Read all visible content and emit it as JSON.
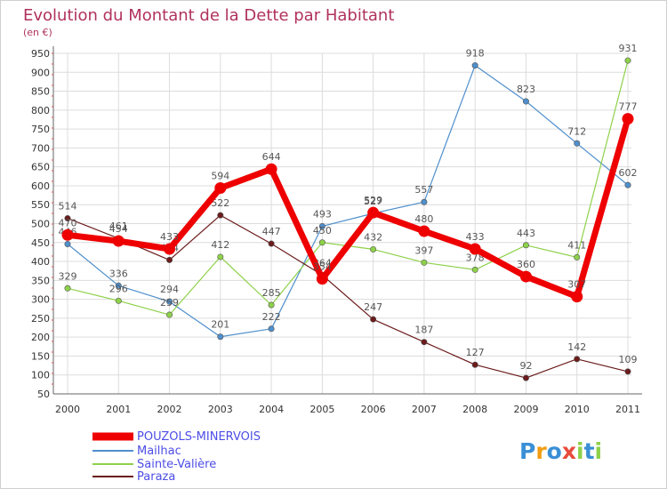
{
  "chart_data": {
    "type": "line",
    "title": "Evolution du Montant de la Dette par Habitant",
    "subtitle": "(en €)",
    "x": [
      "2000",
      "2001",
      "2002",
      "2003",
      "2004",
      "2005",
      "2006",
      "2007",
      "2008",
      "2009",
      "2010",
      "2011"
    ],
    "yticks": [
      50,
      100,
      150,
      200,
      250,
      300,
      350,
      400,
      450,
      500,
      550,
      600,
      650,
      700,
      750,
      800,
      850,
      900,
      950
    ],
    "ylim": [
      50,
      950
    ],
    "grid": true,
    "legend_position": "bottom-left",
    "series": [
      {
        "name": "POUZOLS-MINERVOIS",
        "color": "#ee0000",
        "emphasis": true,
        "values": [
          470,
          454,
          433,
          594,
          644,
          354,
          529,
          480,
          433,
          360,
          307,
          777
        ]
      },
      {
        "name": "Mailhac",
        "color": "#4f8fcc",
        "emphasis": false,
        "values": [
          446,
          336,
          294,
          201,
          222,
          493,
          527,
          557,
          918,
          823,
          712,
          602
        ]
      },
      {
        "name": "Sainte-Valière",
        "color": "#8ed14a",
        "emphasis": false,
        "values": [
          329,
          296,
          259,
          412,
          285,
          450,
          432,
          397,
          378,
          443,
          411,
          931
        ]
      },
      {
        "name": "Paraza",
        "color": "#6b1b1b",
        "emphasis": false,
        "values": [
          514,
          461,
          404,
          522,
          447,
          364,
          247,
          187,
          127,
          92,
          142,
          109
        ]
      }
    ]
  },
  "logo": {
    "text": "Proxiti",
    "letters": [
      "P",
      "r",
      "o",
      "x",
      "i",
      "t",
      "i"
    ],
    "colors": [
      "#3a8fd6",
      "#f39c12",
      "#3a8fd6",
      "#e74c3c",
      "#8ed14a",
      "#3a8fd6",
      "#8ed14a"
    ]
  }
}
